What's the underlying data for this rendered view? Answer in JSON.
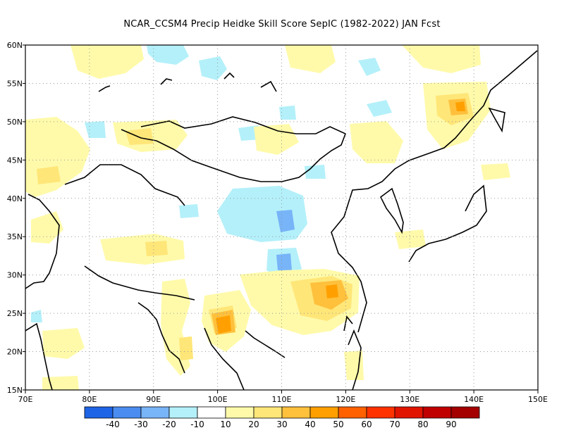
{
  "title": "NCAR_CCSM4 Precip Heidke Skill Score SepIC (1982-2022) JAN Fcst",
  "map": {
    "lon_range": [
      70,
      150
    ],
    "lat_range": [
      15,
      60
    ],
    "lon_ticks": [
      {
        "value": 70,
        "label": "70E"
      },
      {
        "value": 80,
        "label": "80E"
      },
      {
        "value": 90,
        "label": "90E"
      },
      {
        "value": 100,
        "label": "100E"
      },
      {
        "value": 110,
        "label": "110E"
      },
      {
        "value": 120,
        "label": "120E"
      },
      {
        "value": 130,
        "label": "130E"
      },
      {
        "value": 140,
        "label": "140E"
      },
      {
        "value": 150,
        "label": "150E"
      }
    ],
    "lat_ticks": [
      {
        "value": 60,
        "label": "60N"
      },
      {
        "value": 55,
        "label": "55N"
      },
      {
        "value": 50,
        "label": "50N"
      },
      {
        "value": 45,
        "label": "45N"
      },
      {
        "value": 40,
        "label": "40N"
      },
      {
        "value": 35,
        "label": "35N"
      },
      {
        "value": 30,
        "label": "30N"
      },
      {
        "value": 25,
        "label": "25N"
      },
      {
        "value": 20,
        "label": "20N"
      },
      {
        "value": 15,
        "label": "15N"
      }
    ],
    "grid": true
  },
  "colorbar": {
    "colors": [
      "#1e64e6",
      "#4a8cf0",
      "#78b4f8",
      "#b4f0fa",
      "#ffffff",
      "#fffaaa",
      "#ffe678",
      "#ffc03c",
      "#ffa000",
      "#ff6000",
      "#ff3200",
      "#e11400",
      "#c00000",
      "#a50000"
    ],
    "labels": [
      "-40",
      "-30",
      "-20",
      "-10",
      "10",
      "20",
      "30",
      "40",
      "50",
      "60",
      "70",
      "80",
      "90"
    ]
  },
  "chart_data": {
    "type": "heatmap",
    "title": "NCAR_CCSM4 Precip Heidke Skill Score SepIC (1982-2022) JAN Fcst",
    "xlim": [
      70,
      150
    ],
    "ylim": [
      15,
      60
    ],
    "levels": [
      -40,
      -30,
      -20,
      -10,
      10,
      20,
      30,
      40,
      50,
      60,
      70,
      80,
      90
    ],
    "regions": [
      {
        "name": "",
        "lon": [
          100,
          104
        ],
        "lat": [
          22.5,
          25
        ],
        "value": 45
      },
      {
        "name": "",
        "lon": [
          114,
          122
        ],
        "lat": [
          25,
          30
        ],
        "value": 30
      },
      {
        "name": "",
        "lon": [
          109,
          112
        ],
        "lat": [
          30,
          32
        ],
        "value": -25
      },
      {
        "name": "",
        "lon": [
          109,
          112
        ],
        "lat": [
          35,
          37
        ],
        "value": -25
      },
      {
        "name": "",
        "lon": [
          135,
          140
        ],
        "lat": [
          50,
          53
        ],
        "value": 35
      },
      {
        "name": "",
        "lon": [
          88,
          98
        ],
        "lat": [
          46,
          49
        ],
        "value": 20
      },
      {
        "name": "",
        "lon": [
          70,
          80
        ],
        "lat": [
          40,
          45
        ],
        "value": 20
      },
      {
        "name": "",
        "lon": [
          102,
          112
        ],
        "lat": [
          33,
          40
        ],
        "value": -15
      },
      {
        "name": "",
        "lon": [
          96,
          106
        ],
        "lat": [
          15,
          25
        ],
        "value": 20
      }
    ]
  }
}
